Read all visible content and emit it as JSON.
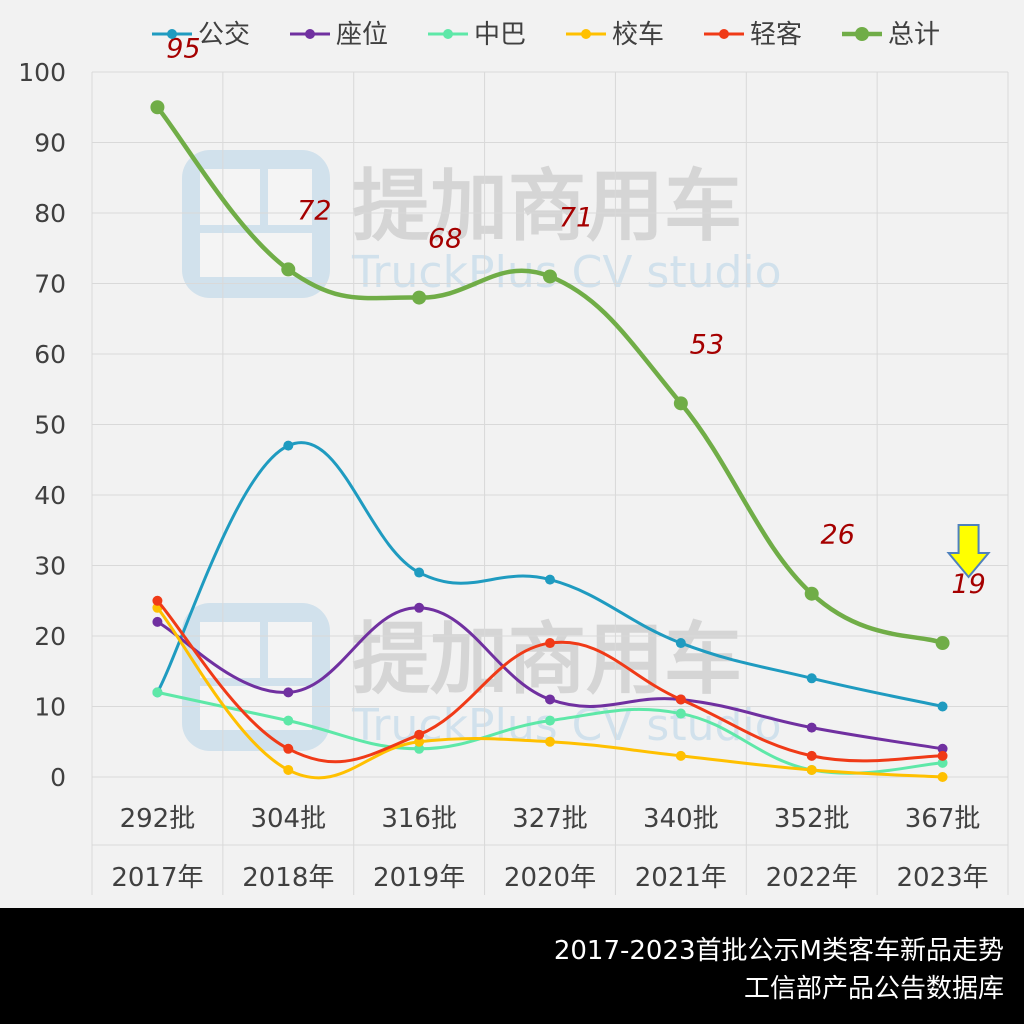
{
  "watermark": {
    "brand": "提加商用车",
    "sub": "TruckPlus CV studio"
  },
  "footer": {
    "line1": "2017-2023首批公示M类客车新品走势",
    "line2": "工信部产品公告数据库"
  },
  "chart_data": {
    "type": "line",
    "categories": [
      {
        "batch": "292批",
        "year": "2017年"
      },
      {
        "batch": "304批",
        "year": "2018年"
      },
      {
        "batch": "316批",
        "year": "2019年"
      },
      {
        "batch": "327批",
        "year": "2020年"
      },
      {
        "batch": "340批",
        "year": "2021年"
      },
      {
        "batch": "352批",
        "year": "2022年"
      },
      {
        "batch": "367批",
        "year": "2023年"
      }
    ],
    "ylim": [
      0,
      100
    ],
    "yticks": [
      0,
      10,
      20,
      30,
      40,
      50,
      60,
      70,
      80,
      90,
      100
    ],
    "grid": true,
    "legend_position": "top",
    "series": [
      {
        "name": "公交",
        "color": "#1f9bc0",
        "values": [
          12,
          47,
          29,
          28,
          19,
          14,
          10
        ]
      },
      {
        "name": "座位",
        "color": "#7030a0",
        "values": [
          22,
          12,
          24,
          11,
          11,
          7,
          4
        ]
      },
      {
        "name": "中巴",
        "color": "#5ee8a8",
        "values": [
          12,
          8,
          4,
          8,
          9,
          1,
          2
        ]
      },
      {
        "name": "校车",
        "color": "#ffc000",
        "values": [
          24,
          1,
          5,
          5,
          3,
          1,
          0
        ]
      },
      {
        "name": "轻客",
        "color": "#f03a17",
        "values": [
          25,
          4,
          6,
          19,
          11,
          3,
          3
        ]
      },
      {
        "name": "总计",
        "color": "#70ad47",
        "values": [
          95,
          72,
          68,
          71,
          53,
          26,
          19
        ],
        "labeled": true
      }
    ],
    "data_label_color": "#a50000",
    "annotation": {
      "type": "down-arrow",
      "category_index": 6,
      "color": "#ffff00"
    }
  }
}
